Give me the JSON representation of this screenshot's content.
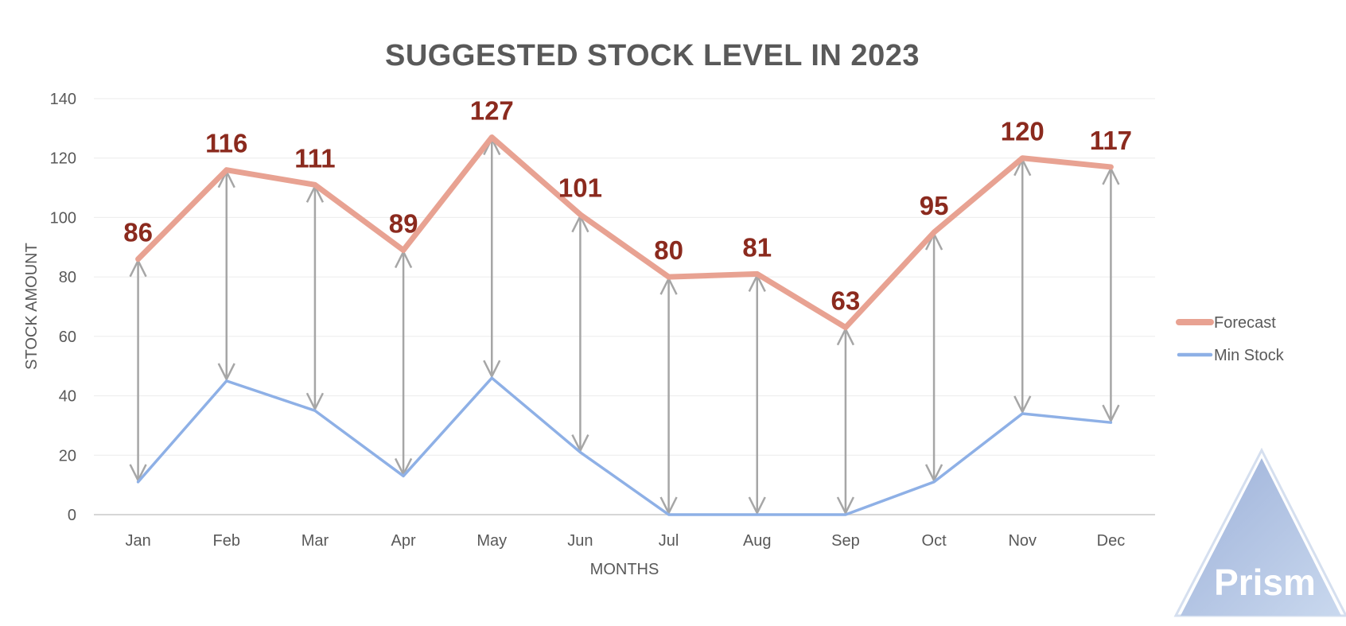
{
  "chart_data": {
    "type": "line",
    "title": "SUGGESTED STOCK LEVEL IN 2023",
    "xlabel": "MONTHS",
    "ylabel": "STOCK AMOUNT",
    "categories": [
      "Jan",
      "Feb",
      "Mar",
      "Apr",
      "May",
      "Jun",
      "Jul",
      "Aug",
      "Sep",
      "Oct",
      "Nov",
      "Dec"
    ],
    "ylim": [
      0,
      140
    ],
    "yticks": [
      0,
      20,
      40,
      60,
      80,
      100,
      120,
      140
    ],
    "grid": true,
    "legend": "right",
    "series": [
      {
        "name": "Forecast",
        "values": [
          86,
          116,
          111,
          89,
          127,
          101,
          80,
          81,
          63,
          95,
          120,
          117
        ],
        "color": "#E8A292",
        "data_labels": true
      },
      {
        "name": "Min Stock",
        "values": [
          11,
          45,
          35,
          13,
          46,
          21,
          0,
          0,
          0,
          11,
          34,
          31
        ],
        "color": "#8EB0E6",
        "data_labels": false
      }
    ],
    "annotations": "double-headed grey arrows between Forecast and Min Stock for each month"
  },
  "logo": {
    "text": "Prism",
    "colors": {
      "top": "#9DB1D9",
      "bottom": "#C9D8EE"
    }
  }
}
